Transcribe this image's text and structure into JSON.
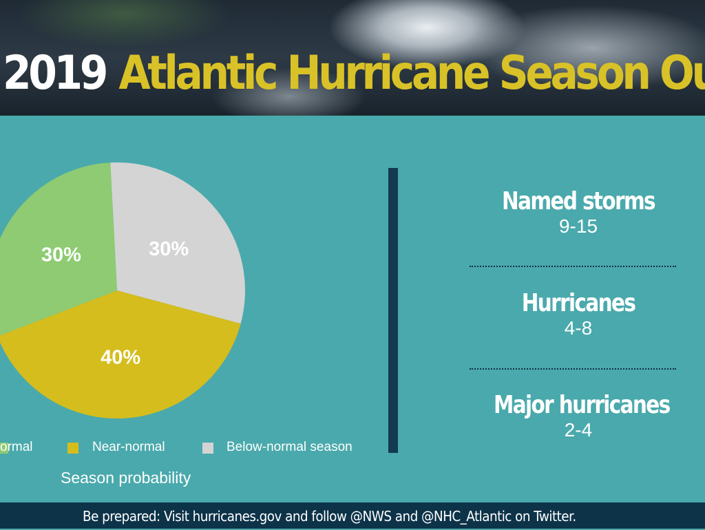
{
  "header": {
    "title_year": "2019",
    "title_rest": "Atlantic Hurricane Season Outlook"
  },
  "chart_data": {
    "type": "pie",
    "title": "",
    "caption": "Season probability",
    "slices": [
      {
        "label": "Below-normal season",
        "value": 30,
        "display": "30%",
        "color": "#d4d4d4"
      },
      {
        "label": "Near-normal",
        "value": 40,
        "display": "40%",
        "color": "#d5bd1e"
      },
      {
        "label": "Above-normal",
        "value": 30,
        "display": "30%",
        "color": "#8ecb73"
      }
    ],
    "legend": [
      {
        "label": "ormal",
        "color": "#8ecb73"
      },
      {
        "label": "Near-normal",
        "color": "#d5bd1e"
      },
      {
        "label": "Below-normal season",
        "color": "#d4d4d4"
      }
    ],
    "legend_position": "bottom"
  },
  "stats": [
    {
      "label": "Named storms",
      "value": "9-15"
    },
    {
      "label": "Hurricanes",
      "value": "4-8"
    },
    {
      "label": "Major hurricanes",
      "value": "2-4"
    }
  ],
  "footer": {
    "text": "Be prepared: Visit hurricanes.gov and follow @NWS and @NHC_Atlantic on Twitter."
  },
  "colors": {
    "background": "#4aa9ac",
    "title_accent": "#d9c227",
    "divider": "#123a50",
    "footer": "#0d3349"
  }
}
